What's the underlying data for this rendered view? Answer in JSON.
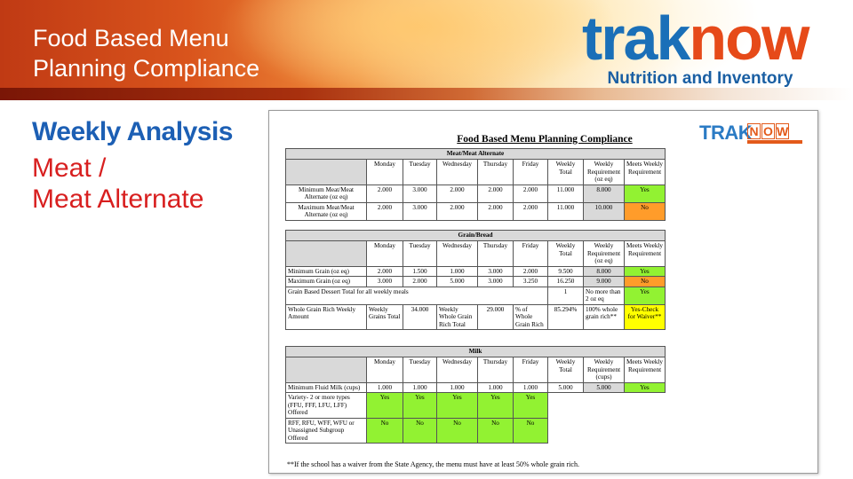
{
  "slide": {
    "title_line1": "Food Based Menu",
    "title_line2": "Planning Compliance",
    "logo_trak": "trak",
    "logo_now": "now",
    "logo_subtitle": "Nutrition and Inventory",
    "caption_heading": "Weekly Analysis",
    "caption_line1": "Meat /",
    "caption_line2": "Meat Alternate"
  },
  "document": {
    "title": "Food Based Menu Planning Compliance",
    "logo_trak": "TRAK",
    "logo_now": [
      "N",
      "O",
      "W"
    ],
    "headers": [
      "Monday",
      "Tuesday",
      "Wednesday",
      "Thursday",
      "Friday",
      "Weekly Total",
      "Weekly Requirement (oz eq)",
      "Meets Weekly Requirement"
    ],
    "milk_headers": [
      "Monday",
      "Tuesday",
      "Wednesday",
      "Thursday",
      "Friday",
      "Weekly Total",
      "Weekly Requirement (cups)",
      "Meets Weekly Requirement"
    ],
    "meat": {
      "section": "Meat/Meat Alternate",
      "rows": [
        {
          "label": "Minimum Meat/Meat Alternate (oz eq)",
          "values": [
            "2.000",
            "3.000",
            "2.000",
            "2.000",
            "2.000",
            "11.000",
            "8.000"
          ],
          "meets": "Yes"
        },
        {
          "label": "Maximum Meat/Meat Alternate (oz eq)",
          "values": [
            "2.000",
            "3.000",
            "2.000",
            "2.000",
            "2.000",
            "11.000",
            "10.000"
          ],
          "meets": "No"
        }
      ]
    },
    "grain": {
      "section": "Grain/Bread",
      "rows": [
        {
          "label": "Minimum Grain (oz eq)",
          "values": [
            "2.000",
            "1.500",
            "1.000",
            "3.000",
            "2.000",
            "9.500",
            "8.000"
          ],
          "meets": "Yes"
        },
        {
          "label": "Maximum Grain (oz eq)",
          "values": [
            "3.000",
            "2.000",
            "5.000",
            "3.000",
            "3.250",
            "16.250",
            "9.000"
          ],
          "meets": "No"
        }
      ],
      "dessert_label": "Grain Based Dessert Total for all weekly meals",
      "dessert_value": "1",
      "dessert_req": "No more than 2 oz eq",
      "dessert_meets": "Yes",
      "whole_label": "Whole Grain Rich Weekly Amount",
      "whole_c1": "Weekly Grains Total",
      "whole_c2": "34.000",
      "whole_c3": "Weekly Whole Grain Rich Total",
      "whole_c4": "29.000",
      "whole_c5": "% of Whole Grain Rich",
      "whole_c6": "85.294%",
      "whole_req": "100% whole grain rich**",
      "whole_meets": "Yes-Check for Waiver**"
    },
    "milk": {
      "section": "Milk",
      "min_row": {
        "label": "Minimum Fluid Milk (cups)",
        "values": [
          "1.000",
          "1.000",
          "1.000",
          "1.000",
          "1.000",
          "5.000",
          "5.000"
        ],
        "meets": "Yes"
      },
      "variety_label": "Variety- 2 or more types (FFU, FFF, LFU, LFF) Offered",
      "variety_values": [
        "Yes",
        "Yes",
        "Yes",
        "Yes",
        "Yes"
      ],
      "rff_label": "RFF, RFU, WFF, WFU or Unassigned Subgroup Offered",
      "rff_values": [
        "No",
        "No",
        "No",
        "No",
        "No"
      ]
    },
    "footnote": "**If the school has a waiver from the State Agency, the menu must have at least 50% whole grain rich."
  },
  "colors": {
    "accent_blue": "#1c5fb4",
    "caption_red": "#d81f1f",
    "yes_green": "#92f232",
    "no_orange": "#ff9c2a",
    "waiver_yellow": "#ffff00"
  }
}
